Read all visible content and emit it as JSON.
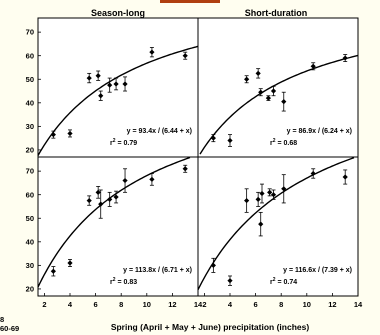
{
  "colors": {
    "background": "#fffef0",
    "plot_bg": "#ffffff",
    "ink": "#000000",
    "accent": "#b04010"
  },
  "left_labels": {
    "top": "8",
    "bottom": "60-69"
  },
  "chart_data": {
    "type": "scatter",
    "xlabel": "Spring (April + May + June) precipitation (inches)",
    "x_ticks": [
      "2",
      "4",
      "6",
      "8",
      "10",
      "12",
      "14"
    ],
    "xlim": [
      1.5,
      14
    ],
    "panel_titles": [
      "Season-long",
      "Short-duration"
    ],
    "rows": [
      {
        "y_ticks": [
          "20",
          "30",
          "40",
          "50",
          "60",
          "70"
        ],
        "ylim": [
          17,
          76
        ],
        "panels": [
          {
            "equation": "y = 93.4x / (6.44 + x)",
            "r2_prefix": "r",
            "r2_sup": "2",
            "r2_value": " = 0.79",
            "fit": {
              "a": 93.4,
              "b": 6.44
            },
            "points": [
              {
                "x": 2.7,
                "y": 26.5,
                "err": 1.5
              },
              {
                "x": 4.0,
                "y": 27,
                "err": 1.5
              },
              {
                "x": 5.5,
                "y": 50.5,
                "err": 2
              },
              {
                "x": 6.2,
                "y": 51.5,
                "err": 2
              },
              {
                "x": 6.4,
                "y": 43,
                "err": 2
              },
              {
                "x": 7.1,
                "y": 47.5,
                "err": 3
              },
              {
                "x": 7.6,
                "y": 48,
                "err": 2.5
              },
              {
                "x": 8.3,
                "y": 48,
                "err": 3
              },
              {
                "x": 10.4,
                "y": 61.5,
                "err": 2
              },
              {
                "x": 13.0,
                "y": 60,
                "err": 1.5
              }
            ]
          },
          {
            "equation": "y = 86.9x / (6.24 + x)",
            "r2_prefix": "r",
            "r2_sup": "2",
            "r2_value": " = 0.68",
            "fit": {
              "a": 86.9,
              "b": 6.24
            },
            "points": [
              {
                "x": 2.7,
                "y": 25,
                "err": 1.5
              },
              {
                "x": 4.0,
                "y": 24,
                "err": 2.5
              },
              {
                "x": 5.3,
                "y": 50,
                "err": 1.5
              },
              {
                "x": 6.2,
                "y": 52.5,
                "err": 2
              },
              {
                "x": 6.4,
                "y": 44.5,
                "err": 1.5
              },
              {
                "x": 7.0,
                "y": 42,
                "err": 1
              },
              {
                "x": 7.4,
                "y": 45,
                "err": 2
              },
              {
                "x": 8.2,
                "y": 40.5,
                "err": 4
              },
              {
                "x": 10.5,
                "y": 55.5,
                "err": 1.5
              },
              {
                "x": 13.0,
                "y": 59,
                "err": 1.5
              }
            ]
          }
        ]
      },
      {
        "y_ticks": [
          "20",
          "30",
          "40",
          "50",
          "60",
          "70"
        ],
        "ylim": [
          17,
          76
        ],
        "panels": [
          {
            "equation": "y = 113.8x / (6.71 + x)",
            "r2_prefix": "r",
            "r2_sup": "2",
            "r2_value": " = 0.83",
            "fit": {
              "a": 113.8,
              "b": 6.71
            },
            "points": [
              {
                "x": 2.7,
                "y": 27.5,
                "err": 2
              },
              {
                "x": 4.0,
                "y": 31,
                "err": 1.5
              },
              {
                "x": 5.5,
                "y": 57.5,
                "err": 2
              },
              {
                "x": 6.2,
                "y": 61,
                "err": 2.5
              },
              {
                "x": 6.4,
                "y": 56,
                "err": 6
              },
              {
                "x": 7.1,
                "y": 58,
                "err": 3
              },
              {
                "x": 7.6,
                "y": 59,
                "err": 2.5
              },
              {
                "x": 8.3,
                "y": 66,
                "err": 5
              },
              {
                "x": 10.4,
                "y": 66.5,
                "err": 2.5
              },
              {
                "x": 13.0,
                "y": 71,
                "err": 1.5
              }
            ]
          },
          {
            "equation": "y = 116.6x / (7.39 + x)",
            "r2_prefix": "r",
            "r2_sup": "2",
            "r2_value": " = 0.74",
            "fit": {
              "a": 116.6,
              "b": 7.39
            },
            "points": [
              {
                "x": 2.7,
                "y": 30,
                "err": 3
              },
              {
                "x": 4.0,
                "y": 23.5,
                "err": 2
              },
              {
                "x": 5.3,
                "y": 57.5,
                "err": 5
              },
              {
                "x": 6.2,
                "y": 58,
                "err": 3
              },
              {
                "x": 6.4,
                "y": 47.5,
                "err": 5
              },
              {
                "x": 6.5,
                "y": 60.5,
                "err": 4
              },
              {
                "x": 7.1,
                "y": 61,
                "err": 1.5
              },
              {
                "x": 7.4,
                "y": 60,
                "err": 2
              },
              {
                "x": 8.2,
                "y": 62.5,
                "err": 6
              },
              {
                "x": 10.5,
                "y": 69,
                "err": 2
              },
              {
                "x": 13.0,
                "y": 67.5,
                "err": 3
              }
            ]
          }
        ]
      }
    ]
  }
}
